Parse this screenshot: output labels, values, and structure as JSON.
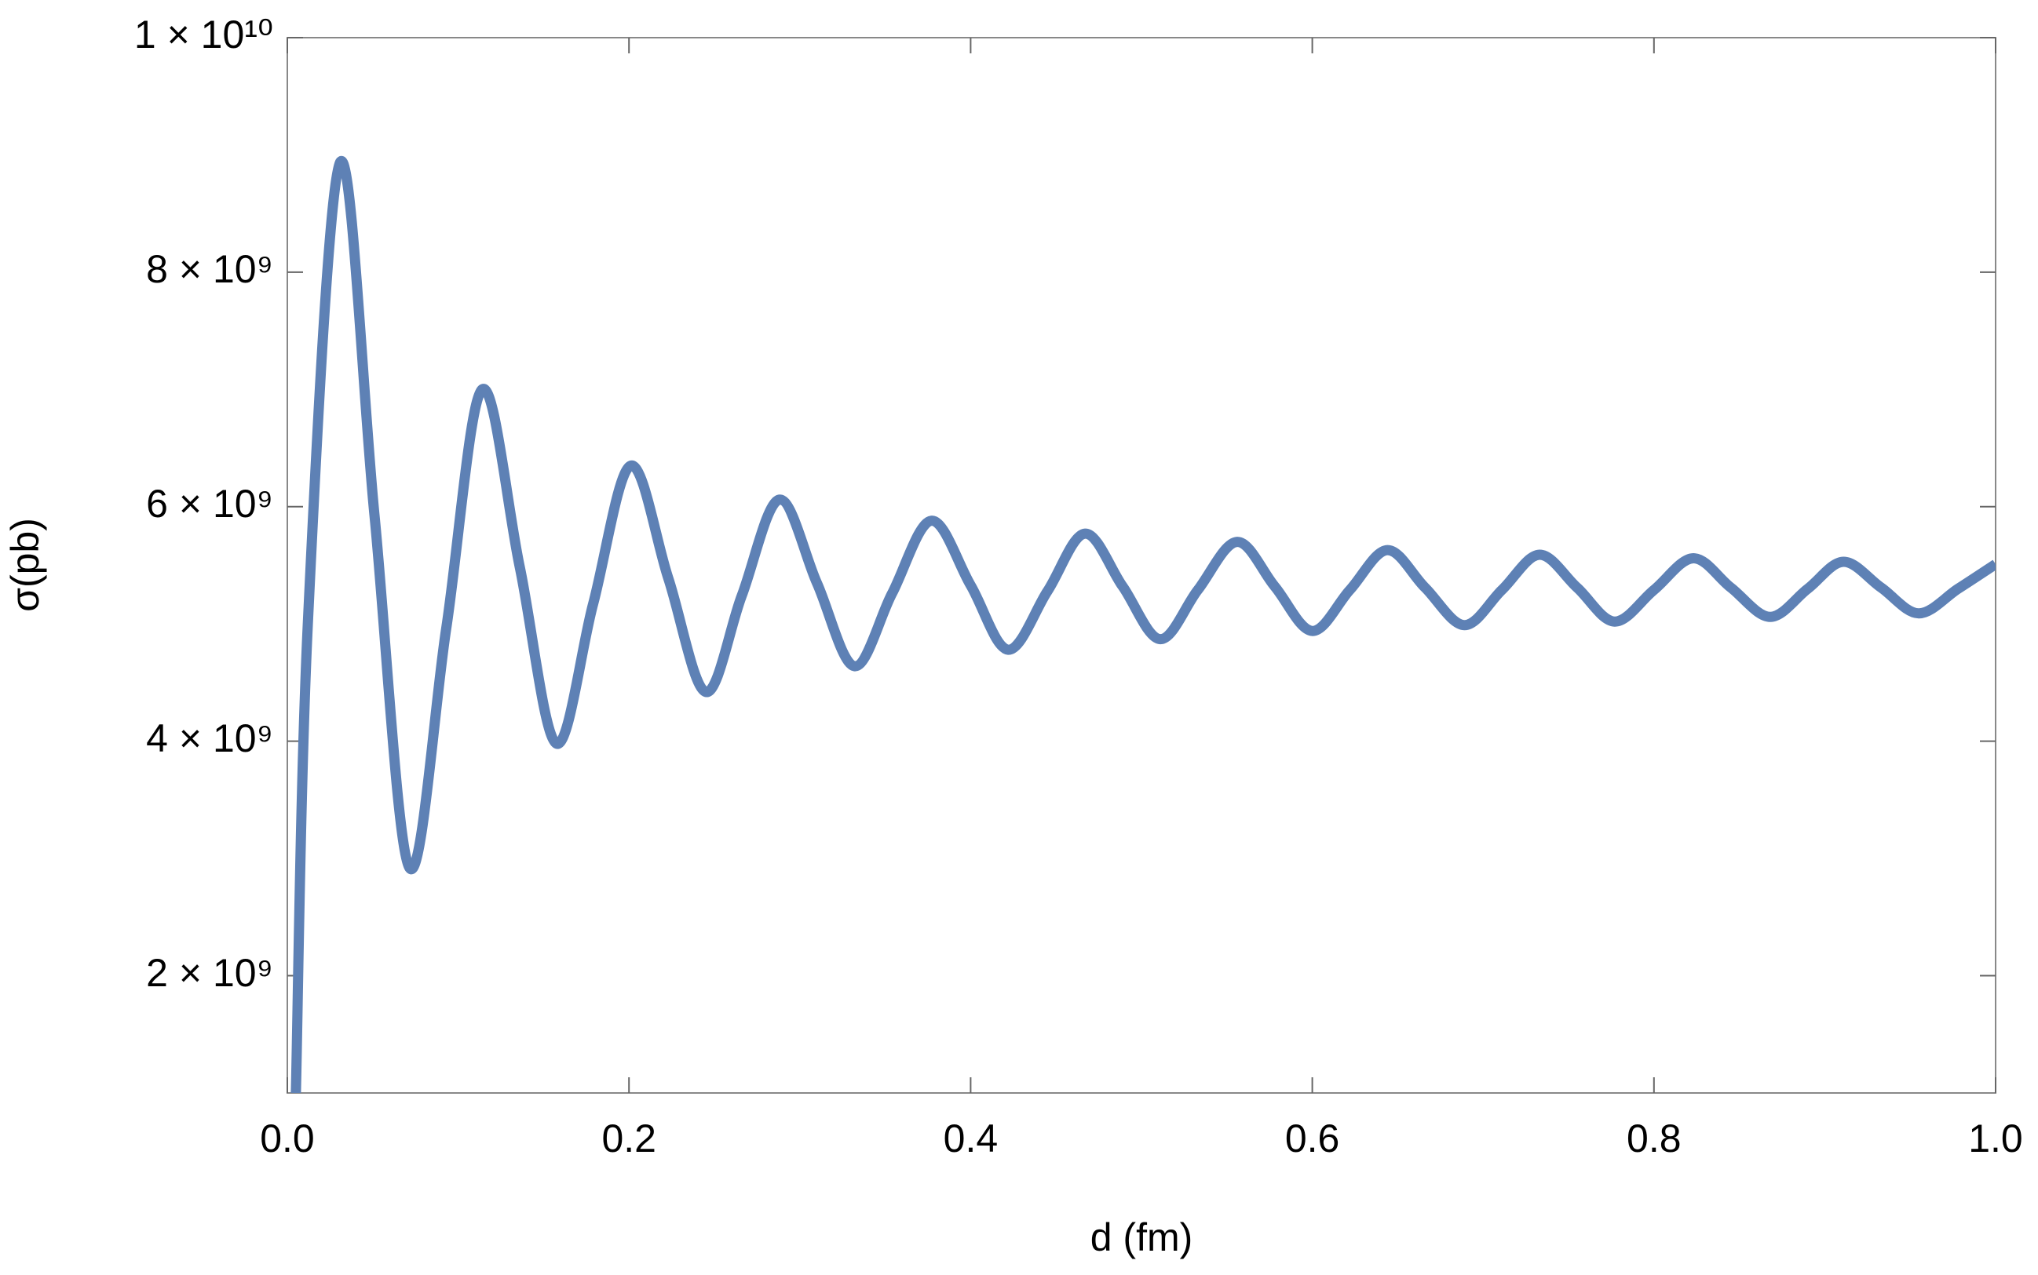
{
  "chart_data": {
    "type": "line",
    "xlabel": "d (fm)",
    "ylabel": "σ(pb)",
    "x": [
      0.005,
      0.012,
      0.031,
      0.051,
      0.0715,
      0.093,
      0.114,
      0.136,
      0.1575,
      0.179,
      0.201,
      0.223,
      0.245,
      0.266,
      0.288,
      0.31,
      0.332,
      0.354,
      0.377,
      0.4,
      0.422,
      0.445,
      0.467,
      0.489,
      0.511,
      0.533,
      0.556,
      0.578,
      0.6,
      0.622,
      0.644,
      0.666,
      0.689,
      0.711,
      0.733,
      0.755,
      0.777,
      0.8,
      0.823,
      0.845,
      0.868,
      0.89,
      0.911,
      0.933,
      0.955,
      0.978,
      1.0
    ],
    "series": [
      {
        "color": "#5e81b5",
        "values": [
          1000000000.0,
          5000000000.0,
          8940000000.0,
          5930000000.0,
          2920000000.0,
          4960000000.0,
          7000000000.0,
          5490000000.0,
          3980000000.0,
          5170000000.0,
          6350000000.0,
          5390000000.0,
          4420000000.0,
          5240000000.0,
          6060000000.0,
          5350000000.0,
          4640000000.0,
          5260000000.0,
          5880000000.0,
          5330000000.0,
          4780000000.0,
          5280000000.0,
          5770000000.0,
          5320000000.0,
          4870000000.0,
          5290000000.0,
          5700000000.0,
          5320000000.0,
          4940000000.0,
          5290000000.0,
          5630000000.0,
          5310000000.0,
          4990000000.0,
          5290000000.0,
          5590000000.0,
          5310000000.0,
          5020000000.0,
          5290000000.0,
          5560000000.0,
          5310000000.0,
          5060000000.0,
          5300000000.0,
          5530000000.0,
          5310000000.0,
          5090000000.0,
          5300000000.0,
          5510000000.0
        ]
      }
    ],
    "xlim": [
      0,
      1
    ],
    "ylim": [
      1000000000,
      10000000000
    ],
    "xticks": [
      {
        "value": 0,
        "label": "0.0"
      },
      0.2,
      0.4,
      0.6,
      0.8,
      {
        "value": 1,
        "label": "1.0"
      }
    ],
    "yticks": [
      {
        "value": 2000000000,
        "label": "2 × 10⁹"
      },
      {
        "value": 4000000000,
        "label": "4 × 10⁹"
      },
      {
        "value": 6000000000,
        "label": "6 × 10⁹"
      },
      {
        "value": 8000000000,
        "label": "8 × 10⁹"
      },
      {
        "value": 10000000000,
        "label": "1 × 10¹⁰"
      }
    ]
  }
}
